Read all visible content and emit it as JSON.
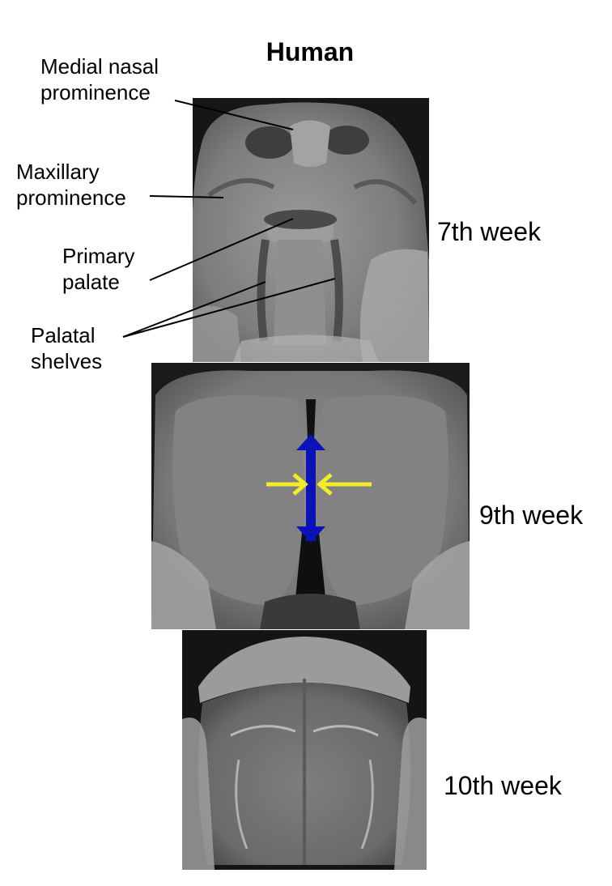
{
  "figure": {
    "title": "Human"
  },
  "panels": [
    {
      "week": "7th week"
    },
    {
      "week": "9th week"
    },
    {
      "week": "10th week"
    }
  ],
  "labels": {
    "medial_nasal": [
      "Medial nasal",
      "prominence"
    ],
    "maxillary": [
      "Maxillary",
      "prominence"
    ],
    "primary_palate": [
      "Primary",
      "palate"
    ],
    "palatal_shelves": [
      "Palatal",
      "shelves"
    ]
  },
  "colors": {
    "medial_arrow": "#0a12b8",
    "shelf_arrow": "#f2ec2a",
    "photo_dark": "#111111",
    "tissue": "#8a8a8a"
  },
  "icons": {
    "medial_arrow": "double-headed-arrow-icon",
    "shelf_arrows": "arrow-right-icon, arrow-left-icon"
  }
}
